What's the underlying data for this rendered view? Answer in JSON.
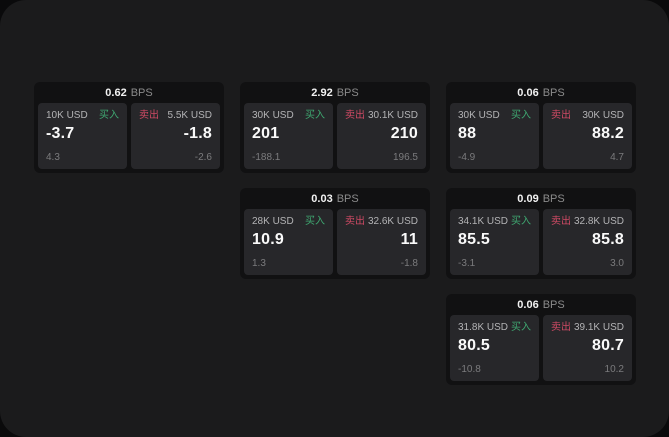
{
  "labels": {
    "bps_unit": "BPS",
    "buy": "买入",
    "sell": "卖出"
  },
  "colors": {
    "buy": "#3fa871",
    "sell": "#ce4a64",
    "canvas_bg": "#1b1b1c",
    "card_bg": "#111112",
    "panel_bg": "#27272a"
  },
  "cards": [
    {
      "bps": "0.62",
      "buy": {
        "amount": "10K USD",
        "price": "-3.7",
        "change": "4.3"
      },
      "sell": {
        "amount": "5.5K USD",
        "price": "-1.8",
        "change": "-2.6"
      }
    },
    {
      "bps": "2.92",
      "buy": {
        "amount": "30K USD",
        "price": "201",
        "change": "-188.1"
      },
      "sell": {
        "amount": "30.1K USD",
        "price": "210",
        "change": "196.5"
      }
    },
    {
      "bps": "0.06",
      "buy": {
        "amount": "30K USD",
        "price": "88",
        "change": "-4.9"
      },
      "sell": {
        "amount": "30K USD",
        "price": "88.2",
        "change": "4.7"
      }
    },
    {
      "bps": "0.03",
      "buy": {
        "amount": "28K USD",
        "price": "10.9",
        "change": "1.3"
      },
      "sell": {
        "amount": "32.6K USD",
        "price": "11",
        "change": "-1.8"
      }
    },
    {
      "bps": "0.09",
      "buy": {
        "amount": "34.1K USD",
        "price": "85.5",
        "change": "-3.1"
      },
      "sell": {
        "amount": "32.8K USD",
        "price": "85.8",
        "change": "3.0"
      }
    },
    {
      "bps": "0.06",
      "buy": {
        "amount": "31.8K USD",
        "price": "80.5",
        "change": "-10.8"
      },
      "sell": {
        "amount": "39.1K USD",
        "price": "80.7",
        "change": "10.2"
      }
    }
  ]
}
